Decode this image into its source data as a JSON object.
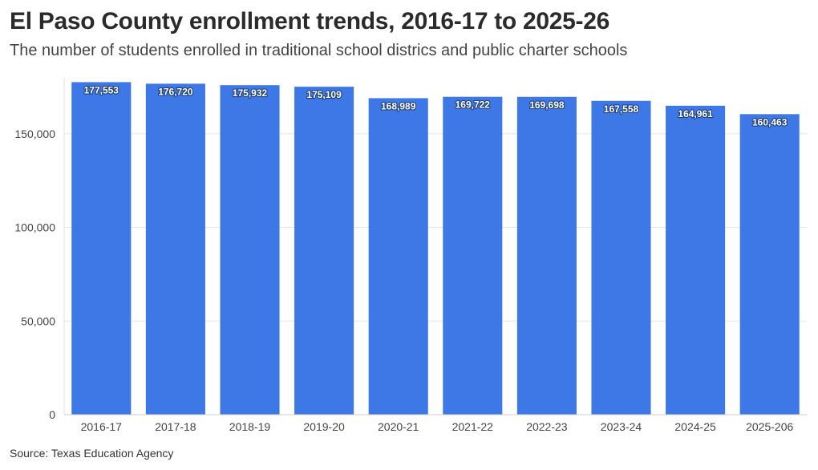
{
  "title": "El Paso County enrollment trends, 2016-17 to 2025-26",
  "subtitle": "The number of students enrolled in traditional school districs and public charter schools",
  "source": "Source: Texas Education Agency",
  "chart_data": {
    "type": "bar",
    "categories": [
      "2016-17",
      "2017-18",
      "2018-19",
      "2019-20",
      "2020-21",
      "2021-22",
      "2022-23",
      "2023-24",
      "2024-25",
      "2025-206"
    ],
    "values": [
      177553,
      176720,
      175932,
      175109,
      168989,
      169722,
      169698,
      167558,
      164961,
      160463
    ],
    "value_labels": [
      "177,553",
      "176,720",
      "175,932",
      "175,109",
      "168,989",
      "169,722",
      "169,698",
      "167,558",
      "164,961",
      "160,463"
    ],
    "y_ticks": [
      0,
      50000,
      100000,
      150000
    ],
    "y_tick_labels": [
      "0",
      "50,000",
      "100,000",
      "150,000"
    ],
    "ylim": [
      0,
      180000
    ],
    "grid": true,
    "bar_color": "#3d78e6"
  }
}
